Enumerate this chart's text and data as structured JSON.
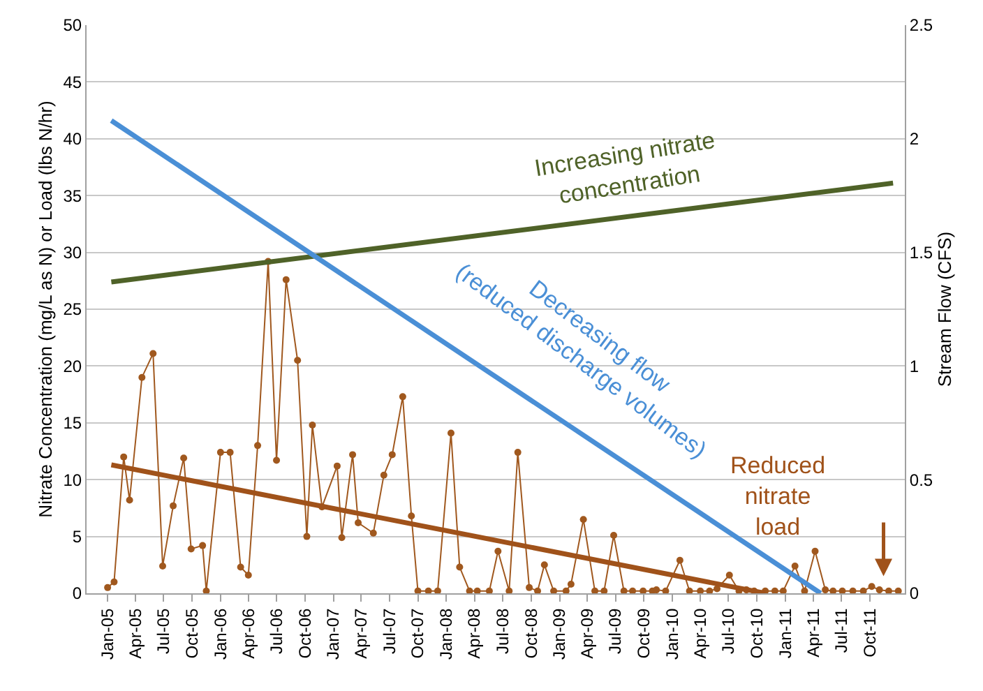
{
  "chart_data": {
    "type": "line",
    "ylabel": "Nitrate Concentration (mg/L as N) or Load (lbs N/hr)",
    "y2label": "Stream Flow (CFS)",
    "series": [
      {
        "color": "#a0581e",
        "marker": "circle",
        "x": [
          "2005-01-01",
          "2005-01-22",
          "2005-02-22",
          "2005-03-13",
          "2005-04-22",
          "2005-05-28",
          "2005-06-28",
          "2005-08-01",
          "2005-09-04",
          "2005-09-28",
          "2005-11-04",
          "2005-11-16",
          "2006-01-01",
          "2006-02-01",
          "2006-03-07",
          "2006-04-01",
          "2006-05-01",
          "2006-06-04",
          "2006-07-01",
          "2006-08-01",
          "2006-09-07",
          "2006-10-07",
          "2006-10-25",
          "2006-11-25",
          "2007-01-13",
          "2007-01-28",
          "2007-03-04",
          "2007-03-22",
          "2007-05-10",
          "2007-06-13",
          "2007-07-10",
          "2007-08-13",
          "2007-09-10",
          "2007-10-01",
          "2007-11-04",
          "2007-12-04",
          "2008-01-16",
          "2008-02-13",
          "2008-03-16",
          "2008-04-10",
          "2008-05-19",
          "2008-06-16",
          "2008-07-22",
          "2008-08-19",
          "2008-09-25",
          "2008-10-22",
          "2008-11-13",
          "2008-12-13",
          "2009-01-22",
          "2009-02-07",
          "2009-03-19",
          "2009-04-25",
          "2009-05-25",
          "2009-06-25",
          "2009-07-28",
          "2009-08-25",
          "2009-09-28",
          "2009-10-28",
          "2009-11-10",
          "2009-12-10",
          "2010-01-25",
          "2010-02-25",
          "2010-04-01",
          "2010-05-01",
          "2010-05-25",
          "2010-07-04",
          "2010-08-04",
          "2010-08-28",
          "2010-09-22",
          "2010-10-28",
          "2010-11-28",
          "2010-12-25",
          "2011-02-01",
          "2011-03-04",
          "2011-04-07",
          "2011-05-10",
          "2011-06-04",
          "2011-07-04",
          "2011-08-07",
          "2011-09-10",
          "2011-10-07",
          "2011-11-01",
          "2011-12-01",
          "2012-01-01"
        ],
        "values": [
          0.5,
          1.0,
          12.0,
          8.2,
          19.0,
          21.1,
          2.4,
          7.7,
          11.9,
          3.9,
          4.2,
          0.2,
          12.4,
          12.4,
          2.3,
          1.6,
          13.0,
          29.2,
          11.7,
          27.6,
          20.5,
          5.0,
          14.8,
          7.6,
          11.2,
          4.9,
          12.2,
          6.2,
          5.3,
          10.4,
          12.2,
          17.3,
          6.8,
          0.2,
          0.2,
          0.2,
          14.1,
          2.3,
          0.2,
          0.2,
          0.2,
          3.7,
          0.2,
          12.4,
          0.5,
          0.2,
          2.5,
          0.2,
          0.2,
          0.8,
          6.5,
          0.2,
          0.2,
          5.1,
          0.2,
          0.2,
          0.2,
          0.2,
          0.3,
          0.2,
          2.9,
          0.2,
          0.2,
          0.2,
          0.4,
          1.6,
          0.2,
          0.3,
          0.2,
          0.2,
          0.2,
          0.2,
          2.4,
          0.2,
          3.7,
          0.3,
          0.2,
          0.2,
          0.2,
          0.2,
          0.6,
          0.3,
          0.2,
          0.2
        ]
      },
      {
        "color": "#4f6228",
        "marker": "none",
        "x": [
          "2005-01-13",
          "2011-12-15"
        ],
        "values": [
          27.4,
          36.1
        ]
      },
      {
        "color": "#4a8fd6",
        "marker": "none",
        "axis": "y2",
        "x": [
          "2005-01-13",
          "2011-04-25"
        ],
        "values": [
          2.08,
          0
        ]
      },
      {
        "color": "#a0521a",
        "marker": "none",
        "x": [
          "2005-01-13",
          "2010-10-28"
        ],
        "values": [
          11.3,
          0
        ]
      }
    ],
    "annotations": [
      "Increasing nitrate\nconcentration",
      "Decreasing flow\n(reduced discharge volumes)",
      "Reduced\nnitrate\nload"
    ],
    "xlim": [
      "2004-10-25",
      "2012-01-22"
    ],
    "xticks": [
      {
        "value": "2005-01-01",
        "label": "Jan-05"
      },
      {
        "value": "2005-04-01",
        "label": "Apr-05"
      },
      {
        "value": "2005-07-01",
        "label": "Jul-05"
      },
      {
        "value": "2005-10-01",
        "label": "Oct-05"
      },
      {
        "value": "2006-01-01",
        "label": "Jan-06"
      },
      {
        "value": "2006-04-01",
        "label": "Apr-06"
      },
      {
        "value": "2006-07-01",
        "label": "Jul-06"
      },
      {
        "value": "2006-10-01",
        "label": "Oct-06"
      },
      {
        "value": "2007-01-01",
        "label": "Jan-07"
      },
      {
        "value": "2007-04-01",
        "label": "Apr-07"
      },
      {
        "value": "2007-07-01",
        "label": "Jul-07"
      },
      {
        "value": "2007-10-01",
        "label": "Oct-07"
      },
      {
        "value": "2008-01-01",
        "label": "Jan-08"
      },
      {
        "value": "2008-04-01",
        "label": "Apr-08"
      },
      {
        "value": "2008-07-01",
        "label": "Jul-08"
      },
      {
        "value": "2008-10-01",
        "label": "Oct-08"
      },
      {
        "value": "2009-01-01",
        "label": "Jan-09"
      },
      {
        "value": "2009-04-01",
        "label": "Apr-09"
      },
      {
        "value": "2009-07-01",
        "label": "Jul-09"
      },
      {
        "value": "2009-10-01",
        "label": "Oct-09"
      },
      {
        "value": "2010-01-01",
        "label": "Jan-10"
      },
      {
        "value": "2010-04-01",
        "label": "Apr-10"
      },
      {
        "value": "2010-07-01",
        "label": "Jul-10"
      },
      {
        "value": "2010-10-01",
        "label": "Oct-10"
      },
      {
        "value": "2011-01-01",
        "label": "Jan-11"
      },
      {
        "value": "2011-04-01",
        "label": "Apr-11"
      },
      {
        "value": "2011-07-01",
        "label": "Jul-11"
      },
      {
        "value": "2011-10-01",
        "label": "Oct-11"
      }
    ],
    "ylim": [
      0,
      50
    ],
    "yticks": [
      0,
      5,
      10,
      15,
      20,
      25,
      30,
      35,
      40,
      45,
      50
    ],
    "y2lim": [
      0,
      2.5
    ],
    "y2ticks": [
      0,
      0.5,
      1,
      1.5,
      2,
      2.5
    ],
    "grid": "y"
  }
}
